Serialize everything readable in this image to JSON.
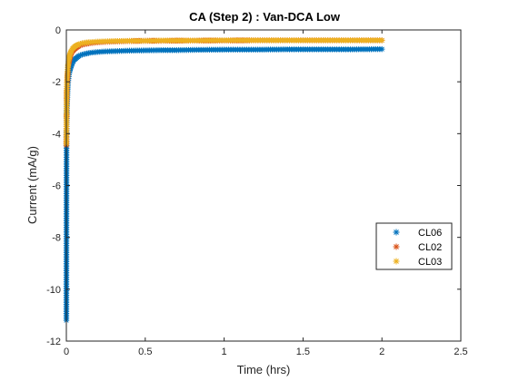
{
  "chart_data": {
    "type": "scatter",
    "title": "CA (Step 2) : Van-DCA Low",
    "xlabel": "Time (hrs)",
    "ylabel": "Current (mA/g)",
    "xlim": [
      0,
      2.5
    ],
    "ylim": [
      -12,
      0
    ],
    "xticks": [
      0,
      0.5,
      1,
      1.5,
      2,
      2.5
    ],
    "xtick_labels": [
      "0",
      "0.5",
      "1",
      "1.5",
      "2",
      "2.5"
    ],
    "yticks": [
      -12,
      -10,
      -8,
      -6,
      -4,
      -2,
      0
    ],
    "ytick_labels": [
      "-12",
      "-10",
      "-8",
      "-6",
      "-4",
      "-2",
      "0"
    ],
    "grid": false,
    "legend_position": "right",
    "marker": "*",
    "series": [
      {
        "name": "CL06",
        "color": "#0072BD",
        "x": [
          0,
          0.001,
          0.002,
          0.003,
          0.004,
          0.006,
          0.008,
          0.01,
          0.012,
          0.015,
          0.02,
          0.025,
          0.03,
          0.04,
          0.05,
          0.06,
          0.08,
          0.1,
          0.12,
          0.15,
          0.2,
          0.25,
          0.3,
          0.4,
          0.5,
          0.6,
          0.7,
          0.8,
          1.0,
          1.2,
          1.4,
          1.6,
          1.8,
          2.0
        ],
        "y": [
          -11.2,
          -3.95,
          -3.8,
          -3.1,
          -2.85,
          -2.6,
          -2.3,
          -2.1,
          -1.95,
          -1.8,
          -1.6,
          -1.5,
          -1.4,
          -1.25,
          -1.15,
          -1.1,
          -1.0,
          -0.95,
          -0.92,
          -0.88,
          -0.85,
          -0.83,
          -0.82,
          -0.8,
          -0.79,
          -0.78,
          -0.78,
          -0.77,
          -0.76,
          -0.76,
          -0.75,
          -0.75,
          -0.75,
          -0.74
        ]
      },
      {
        "name": "CL02",
        "color": "#D95319",
        "x": [
          0,
          0.001,
          0.002,
          0.003,
          0.005,
          0.007,
          0.01,
          0.012,
          0.015,
          0.02,
          0.025,
          0.03,
          0.04,
          0.05,
          0.06,
          0.08,
          0.1,
          0.12,
          0.15,
          0.2,
          0.25,
          0.3,
          0.4,
          0.5,
          0.6,
          0.8,
          1.0,
          1.2,
          1.4,
          1.6,
          1.8,
          2.0
        ],
        "y": [
          -4.45,
          -3.4,
          -3.2,
          -2.4,
          -2.1,
          -1.9,
          -1.6,
          -1.45,
          -1.3,
          -1.15,
          -1.0,
          -0.92,
          -0.82,
          -0.75,
          -0.7,
          -0.62,
          -0.57,
          -0.54,
          -0.51,
          -0.48,
          -0.46,
          -0.45,
          -0.43,
          -0.42,
          -0.42,
          -0.41,
          -0.41,
          -0.4,
          -0.4,
          -0.4,
          -0.4,
          -0.4
        ]
      },
      {
        "name": "CL03",
        "color": "#EDB120",
        "x": [
          0,
          0.001,
          0.002,
          0.003,
          0.005,
          0.007,
          0.01,
          0.012,
          0.015,
          0.02,
          0.025,
          0.03,
          0.04,
          0.05,
          0.06,
          0.08,
          0.1,
          0.12,
          0.15,
          0.2,
          0.25,
          0.3,
          0.4,
          0.5,
          0.6,
          0.8,
          1.0,
          1.2,
          1.4,
          1.6,
          1.8,
          2.0
        ],
        "y": [
          -4.4,
          -3.3,
          -2.35,
          -2.1,
          -1.85,
          -1.65,
          -1.4,
          -1.3,
          -1.15,
          -1.0,
          -0.9,
          -0.82,
          -0.72,
          -0.66,
          -0.61,
          -0.55,
          -0.51,
          -0.49,
          -0.47,
          -0.45,
          -0.44,
          -0.43,
          -0.42,
          -0.42,
          -0.41,
          -0.41,
          -0.4,
          -0.4,
          -0.4,
          -0.4,
          -0.4,
          -0.4
        ]
      }
    ]
  }
}
